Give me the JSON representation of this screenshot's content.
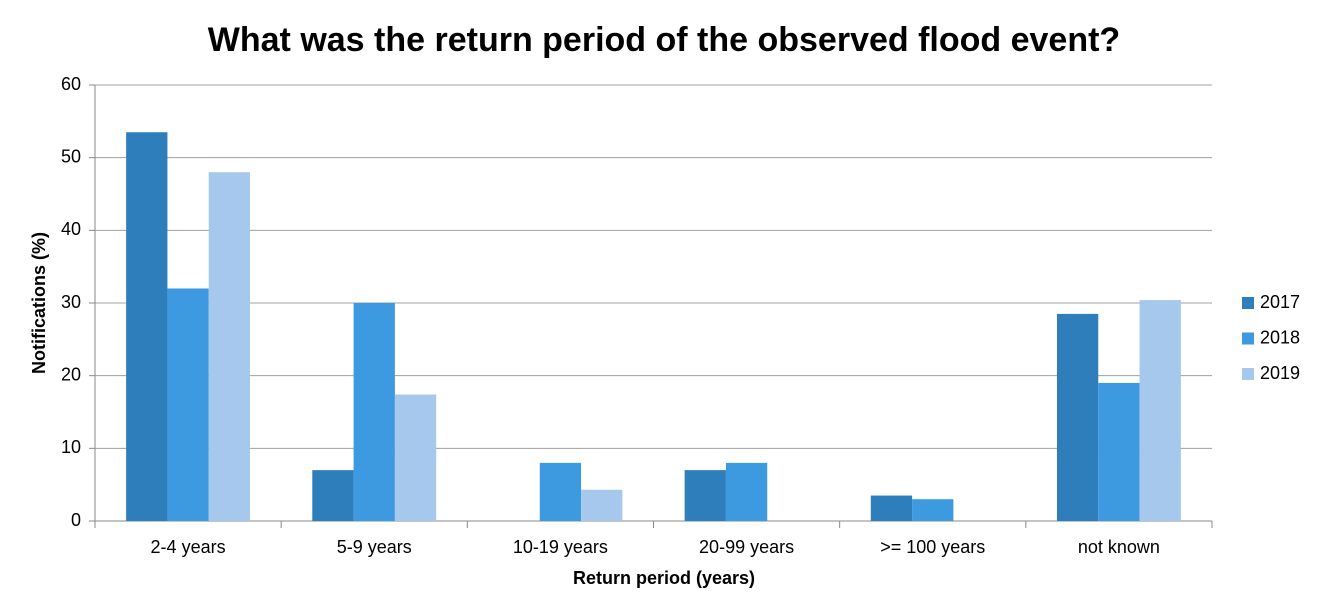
{
  "chart_data": {
    "type": "bar",
    "title": "What was the return period of the observed flood event?",
    "x_label": "Return period (years)",
    "y_label": "Notifications (%)",
    "categories": [
      "2-4 years",
      "5-9 years",
      "10-19 years",
      "20-99 years",
      ">= 100 years",
      "not known"
    ],
    "series": [
      {
        "name": "2017",
        "color": "#2e7ebc",
        "values": [
          53.5,
          7,
          0,
          7,
          3.5,
          28.5
        ]
      },
      {
        "name": "2018",
        "color": "#3d9ae0",
        "values": [
          32,
          30,
          8,
          8,
          3,
          19
        ]
      },
      {
        "name": "2019",
        "color": "#a6c8ec",
        "values": [
          48,
          17.4,
          4.3,
          0,
          0,
          30.4
        ]
      }
    ],
    "ylim": [
      0,
      60
    ],
    "yticks": [
      0,
      10,
      20,
      30,
      40,
      50,
      60
    ],
    "grid": true,
    "legend": "right"
  }
}
